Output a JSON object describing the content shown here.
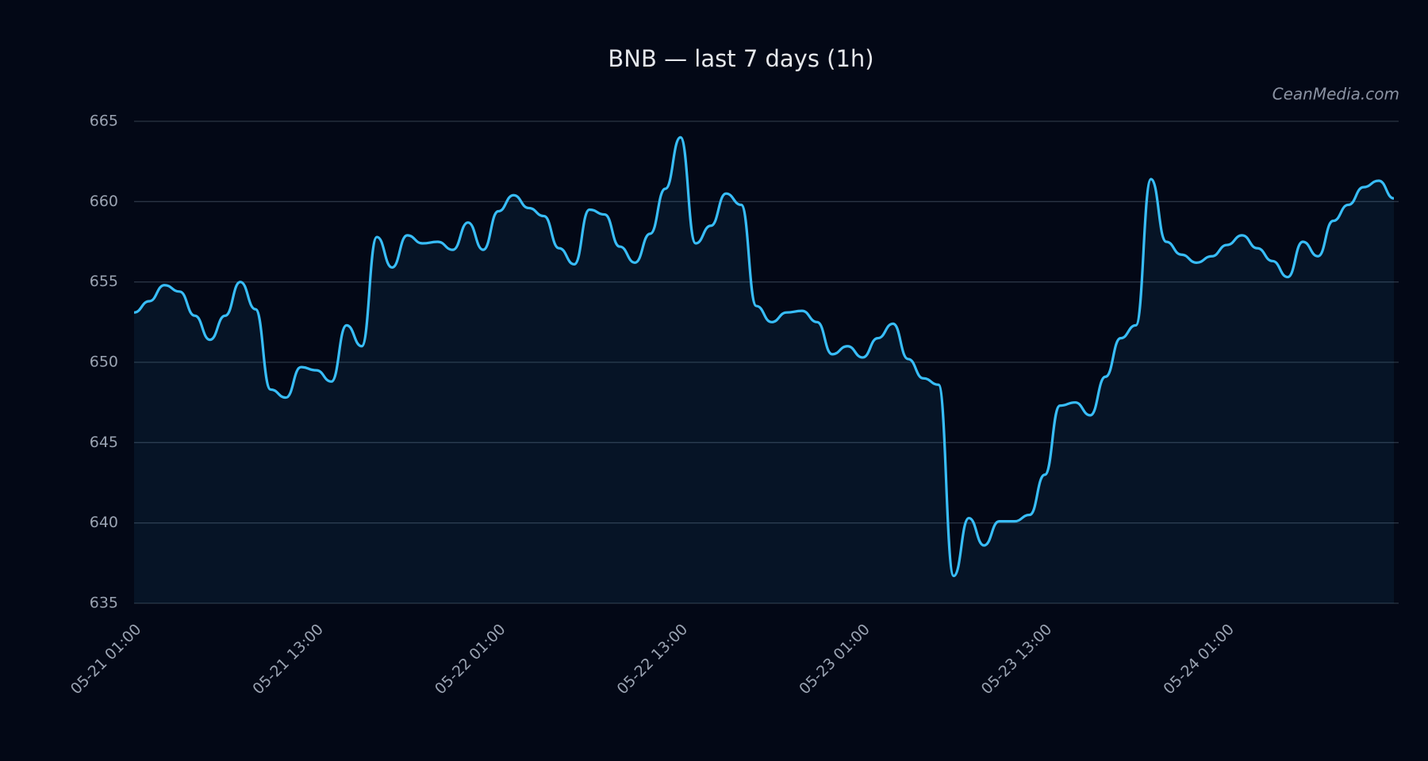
{
  "chart_data": {
    "type": "line",
    "title": "BNB — last 7 days (1h)",
    "watermark": "CeanMedia.com",
    "x": [
      "05-21 01:00",
      "05-21 02:00",
      "05-21 03:00",
      "05-21 04:00",
      "05-21 05:00",
      "05-21 06:00",
      "05-21 07:00",
      "05-21 08:00",
      "05-21 09:00",
      "05-21 10:00",
      "05-21 11:00",
      "05-21 12:00",
      "05-21 13:00",
      "05-21 14:00",
      "05-21 15:00",
      "05-21 16:00",
      "05-21 17:00",
      "05-21 18:00",
      "05-21 19:00",
      "05-21 20:00",
      "05-21 21:00",
      "05-21 22:00",
      "05-21 23:00",
      "05-22 00:00",
      "05-22 01:00",
      "05-22 02:00",
      "05-22 03:00",
      "05-22 04:00",
      "05-22 05:00",
      "05-22 06:00",
      "05-22 07:00",
      "05-22 08:00",
      "05-22 09:00",
      "05-22 10:00",
      "05-22 11:00",
      "05-22 12:00",
      "05-22 13:00",
      "05-22 14:00",
      "05-22 15:00",
      "05-22 16:00",
      "05-22 17:00",
      "05-22 18:00",
      "05-22 19:00",
      "05-22 20:00",
      "05-22 21:00",
      "05-22 22:00",
      "05-22 23:00",
      "05-23 00:00",
      "05-23 01:00",
      "05-23 02:00",
      "05-23 03:00",
      "05-23 04:00",
      "05-23 05:00",
      "05-23 06:00",
      "05-23 07:00",
      "05-23 08:00",
      "05-23 09:00",
      "05-23 10:00",
      "05-23 11:00",
      "05-23 12:00",
      "05-23 13:00",
      "05-23 14:00",
      "05-23 15:00",
      "05-23 16:00",
      "05-23 17:00",
      "05-23 18:00",
      "05-23 19:00",
      "05-23 20:00",
      "05-23 21:00",
      "05-23 22:00",
      "05-23 23:00",
      "05-24 00:00",
      "05-24 01:00",
      "05-24 02:00",
      "05-24 03:00",
      "05-24 04:00",
      "05-24 05:00",
      "05-24 06:00",
      "05-24 07:00",
      "05-24 08:00",
      "05-24 09:00",
      "05-24 10:00",
      "05-24 11:00",
      "05-24 12:00"
    ],
    "series": [
      {
        "name": "BNB",
        "color": "#38bdf8",
        "values": [
          653.1,
          653.8,
          654.8,
          654.4,
          652.9,
          651.4,
          652.9,
          655.0,
          653.3,
          648.3,
          647.8,
          649.7,
          649.5,
          648.8,
          652.3,
          651.0,
          657.8,
          655.9,
          657.9,
          657.4,
          657.5,
          657.0,
          658.7,
          657.0,
          659.4,
          660.4,
          659.6,
          659.1,
          657.1,
          656.1,
          659.5,
          659.2,
          657.2,
          656.2,
          658.0,
          660.8,
          664.0,
          657.4,
          658.5,
          660.5,
          659.8,
          653.5,
          652.5,
          653.1,
          653.2,
          652.5,
          650.5,
          651.0,
          650.3,
          651.5,
          652.4,
          650.2,
          649.0,
          648.6,
          636.7,
          640.3,
          638.6,
          640.1,
          640.1,
          640.5,
          643.0,
          647.3,
          647.5,
          646.7,
          649.1,
          651.5,
          652.3,
          661.4,
          657.5,
          656.7,
          656.2,
          656.6,
          657.3,
          657.9,
          657.1,
          656.3,
          655.3,
          657.5,
          656.6,
          658.8,
          659.8,
          660.9,
          661.3,
          660.2
        ]
      }
    ],
    "xticks": [
      "05-21 01:00",
      "05-21 13:00",
      "05-22 01:00",
      "05-22 13:00",
      "05-23 01:00",
      "05-23 13:00",
      "05-24 01:00"
    ],
    "ylim": [
      635,
      665
    ],
    "yticks": [
      635,
      640,
      645,
      650,
      655,
      660,
      665
    ],
    "grid": true,
    "area": true
  }
}
